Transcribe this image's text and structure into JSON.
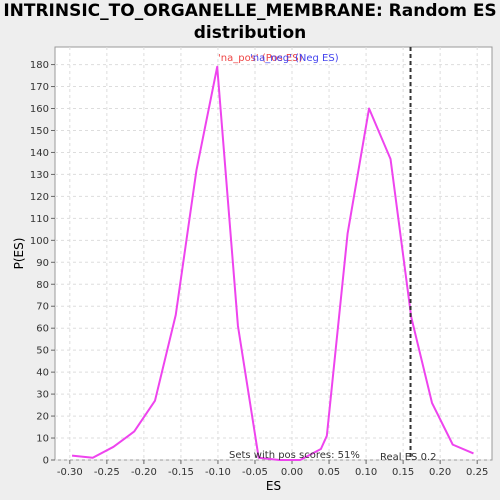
{
  "title_line1": "INTRINSIC_TO_ORGANELLE_MEMBRANE: Random ES",
  "title_line2": "distribution",
  "chart_data": {
    "type": "line",
    "xlabel": "ES",
    "ylabel": "P(ES)",
    "xlim": [
      -0.32,
      0.27
    ],
    "ylim": [
      0,
      188
    ],
    "xticks": [
      -0.3,
      -0.25,
      -0.2,
      -0.15,
      -0.1,
      -0.05,
      0.0,
      0.05,
      0.1,
      0.15,
      0.2,
      0.25
    ],
    "xtick_labels": [
      "-0.30",
      "-0.25",
      "-0.20",
      "-0.15",
      "-0.10",
      "-0.05",
      "0.00",
      "0.05",
      "0.10",
      "0.15",
      "0.20",
      "0.25"
    ],
    "yticks": [
      0,
      10,
      20,
      30,
      40,
      50,
      60,
      70,
      80,
      90,
      100,
      110,
      120,
      130,
      140,
      150,
      160,
      170,
      180
    ],
    "grid": true,
    "series": [
      {
        "color": "#ee44ee",
        "x": [
          -0.297,
          -0.269,
          -0.241,
          -0.213,
          -0.185,
          -0.157,
          -0.129,
          -0.101,
          -0.073,
          -0.045,
          -0.017,
          0.011,
          0.039,
          0.047,
          0.075,
          0.104,
          0.133,
          0.161,
          0.189,
          0.217,
          0.245
        ],
        "y": [
          2,
          1,
          6,
          13,
          27,
          66,
          132,
          179,
          61,
          1,
          0,
          0,
          5,
          11,
          103,
          160,
          137,
          65,
          26,
          7,
          3
        ]
      }
    ],
    "legend": [
      {
        "label": "'na_pos' (Pos ES)",
        "color": "#ee4444"
      },
      {
        "label": "'na_neg' (Neg ES)",
        "color": "#4444ee"
      }
    ],
    "real_es": {
      "x": 0.16,
      "label": "Real ES 0.2"
    },
    "footnote": "Sets with pos scores: 51%"
  }
}
